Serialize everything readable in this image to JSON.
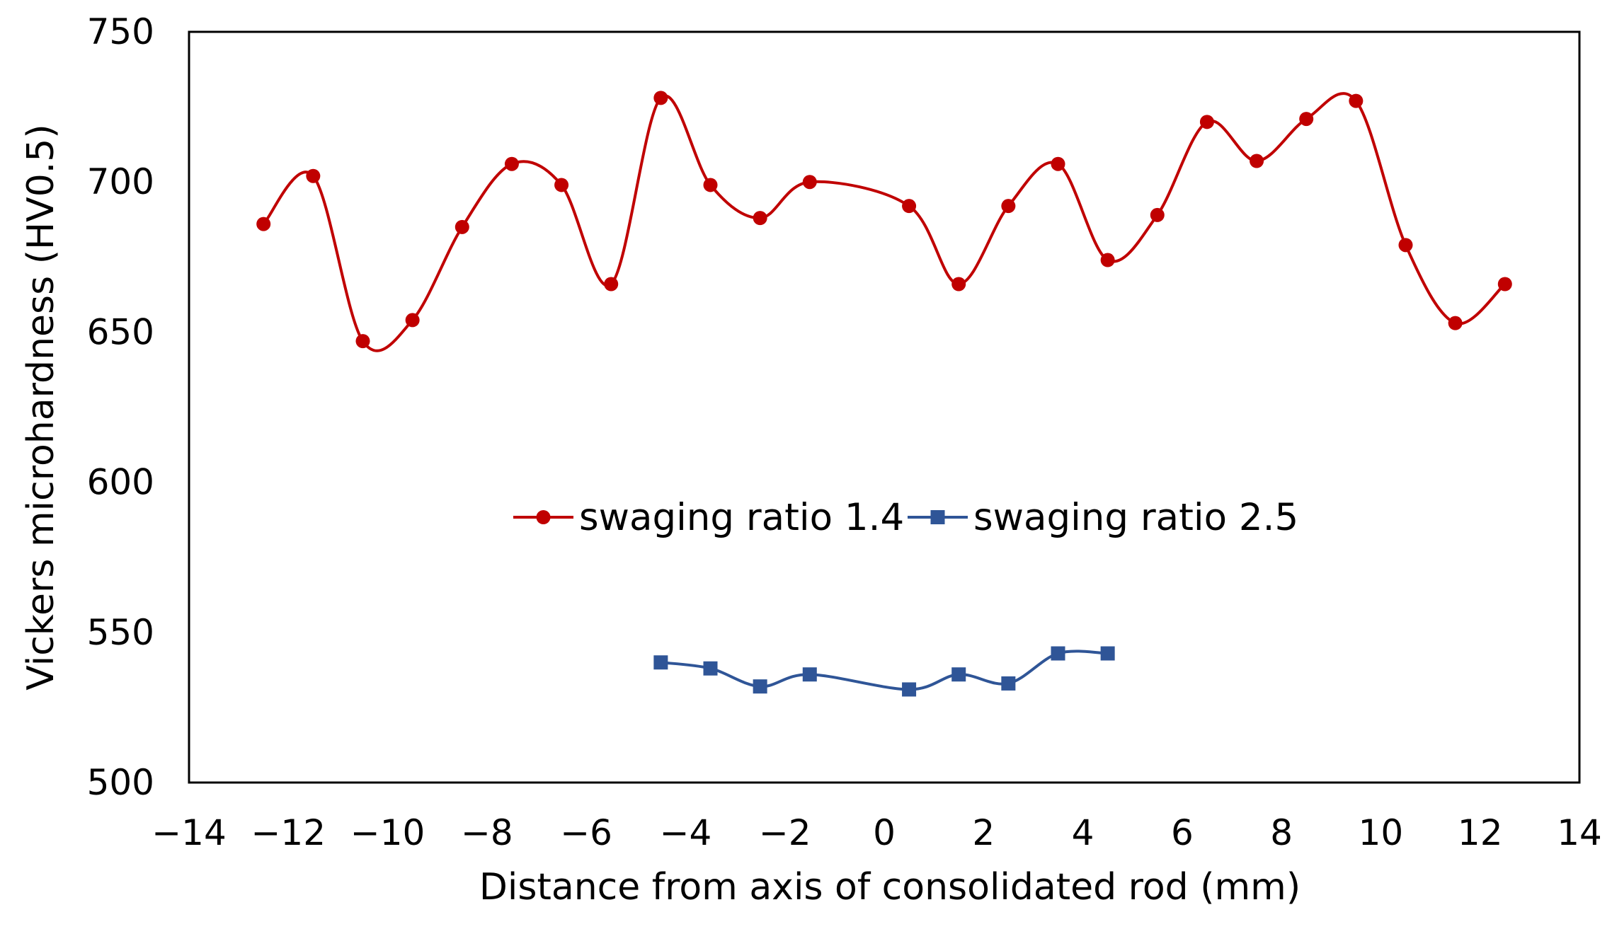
{
  "chart_data": {
    "type": "line",
    "title": "",
    "xlabel": "Distance from axis of consolidated rod (mm)",
    "ylabel": "Vickers microhardness (HV0.5)",
    "xlim": [
      -14,
      14
    ],
    "ylim": [
      500,
      750
    ],
    "xticks": [
      -14,
      -12,
      -10,
      -8,
      -6,
      -4,
      -2,
      0,
      2,
      4,
      6,
      8,
      10,
      12,
      14
    ],
    "yticks": [
      500,
      550,
      600,
      650,
      700,
      750
    ],
    "grid": false,
    "legend_position": "center",
    "series": [
      {
        "name": "swaging ratio 1.4",
        "color": "#C00000",
        "marker": "circle",
        "smooth": true,
        "x": [
          -12.5,
          -11.5,
          -10.5,
          -9.5,
          -8.5,
          -7.5,
          -6.5,
          -5.5,
          -4.5,
          -3.5,
          -2.5,
          -1.5,
          0.5,
          1.5,
          2.5,
          3.5,
          4.5,
          5.5,
          6.5,
          7.5,
          8.5,
          9.5,
          10.5,
          11.5,
          12.5
        ],
        "y": [
          686,
          702,
          647,
          654,
          685,
          706,
          699,
          666,
          728,
          699,
          688,
          700,
          692,
          666,
          692,
          706,
          674,
          689,
          720,
          707,
          721,
          727,
          679,
          653,
          666
        ]
      },
      {
        "name": "swaging ratio 2.5",
        "color": "#2F5597",
        "marker": "square",
        "smooth": true,
        "x": [
          -4.5,
          -3.5,
          -2.5,
          -1.5,
          0.5,
          1.5,
          2.5,
          3.5,
          4.5
        ],
        "y": [
          540,
          538,
          532,
          536,
          531,
          536,
          533,
          543,
          543
        ]
      }
    ]
  }
}
